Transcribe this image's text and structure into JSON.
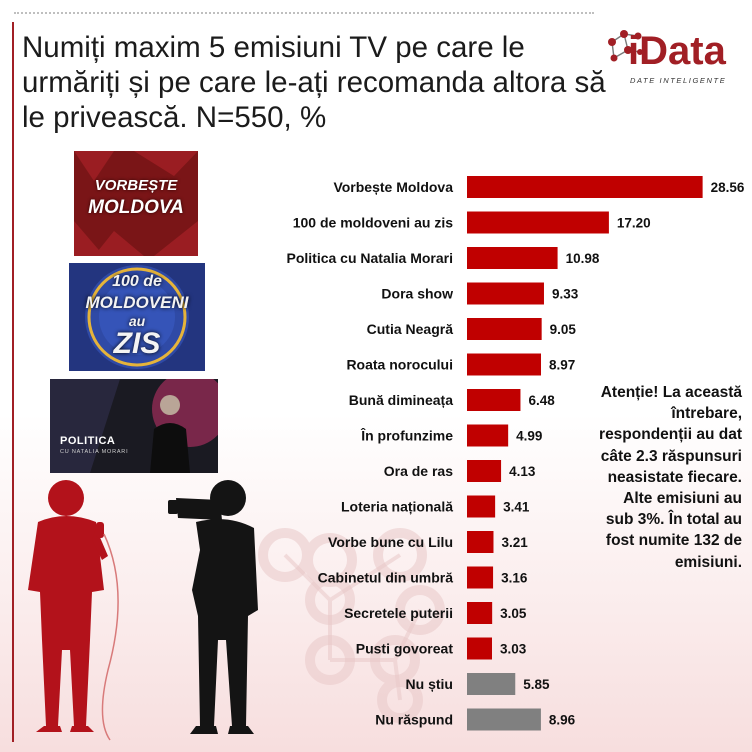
{
  "title": "Numiți maxim 5 emisiuni TV pe care le urmăriți și pe care le-ați recomanda altora să le privească. N=550, %",
  "logo": {
    "name": "iData",
    "tagline": "DATE INTELIGENTE"
  },
  "images": {
    "vorbeste_moldova": {
      "line1": "VORBEȘTE",
      "line2": "MOLDOVA"
    },
    "o_suta_moldoveni": {
      "line1": "100 de",
      "line2": "MOLDOVENI",
      "line3": "au",
      "line4": "ZIS"
    },
    "politica": {
      "title": "POLITICA",
      "subtitle": "CU NATALIA MORARI"
    }
  },
  "note": "Atenție! La această întrebare, respondenții au dat câte 2.3 răspunsuri neasistate fiecare. Alte emisiuni au sub 3%. În total au fost numite 132 de emisiuni.",
  "colors": {
    "brand": "#a11f25",
    "bar": "#c00000",
    "bar_other": "#808080"
  },
  "chart_data": {
    "type": "bar",
    "orientation": "horizontal",
    "categories": [
      "Vorbește Moldova",
      "100 de moldoveni au zis",
      "Politica cu Natalia Morari",
      "Dora show",
      "Cutia Neagră",
      "Roata norocului",
      "Bună dimineața",
      "În profunzime",
      "Ora de ras",
      "Loteria națională",
      "Vorbe bune cu Lilu",
      "Cabinetul din umbră",
      "Secretele puterii",
      "Pusti govoreat",
      "Nu știu",
      "Nu răspund"
    ],
    "values": [
      28.56,
      17.2,
      10.98,
      9.33,
      9.05,
      8.97,
      6.48,
      4.99,
      4.13,
      3.41,
      3.21,
      3.16,
      3.05,
      3.03,
      5.85,
      8.96
    ],
    "value_labels": [
      "28.56",
      "17.20",
      "10.98",
      "9.33",
      "9.05",
      "8.97",
      "6.48",
      "4.99",
      "4.13",
      "3.41",
      "3.21",
      "3.16",
      "3.05",
      "3.03",
      "5.85",
      "8.96"
    ],
    "bar_colors": [
      "#c00000",
      "#c00000",
      "#c00000",
      "#c00000",
      "#c00000",
      "#c00000",
      "#c00000",
      "#c00000",
      "#c00000",
      "#c00000",
      "#c00000",
      "#c00000",
      "#c00000",
      "#c00000",
      "#808080",
      "#808080"
    ],
    "title": "",
    "xlabel": "",
    "ylabel": "",
    "xlim": [
      0,
      30
    ],
    "grid": false,
    "legend": "none"
  }
}
